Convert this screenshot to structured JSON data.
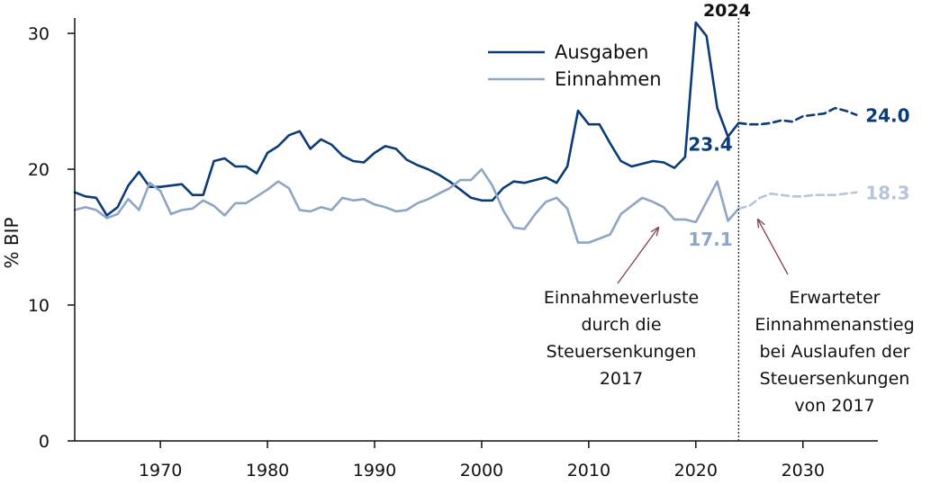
{
  "colors": {
    "ausgaben": "#0b3b78",
    "einnahmen": "#8fa5c4",
    "einnahmen_proj": "#b7c5db",
    "annotation_arrow": "#8a4a5a",
    "axis": "#111111"
  },
  "chart_data": {
    "type": "line",
    "ylabel": "% BIP",
    "xlim": [
      1962,
      2037
    ],
    "ylim": [
      0,
      31
    ],
    "xticks": [
      1970,
      1980,
      1990,
      2000,
      2010,
      2020,
      2030
    ],
    "yticks": [
      0,
      10,
      20,
      30
    ],
    "grid": false,
    "legend_position": "top-right",
    "vertical_marker": {
      "x": 2024,
      "label": "2024",
      "style": "dotted"
    },
    "series": [
      {
        "name": "Ausgaben",
        "style": "solid",
        "x": [
          1962,
          1963,
          1964,
          1965,
          1966,
          1967,
          1968,
          1969,
          1970,
          1971,
          1972,
          1973,
          1974,
          1975,
          1976,
          1977,
          1978,
          1979,
          1980,
          1981,
          1982,
          1983,
          1984,
          1985,
          1986,
          1987,
          1988,
          1989,
          1990,
          1991,
          1992,
          1993,
          1994,
          1995,
          1996,
          1997,
          1998,
          1999,
          2000,
          2001,
          2002,
          2003,
          2004,
          2005,
          2006,
          2007,
          2008,
          2009,
          2010,
          2011,
          2012,
          2013,
          2014,
          2015,
          2016,
          2017,
          2018,
          2019,
          2020,
          2021,
          2022,
          2023,
          2024
        ],
        "y": [
          18.3,
          18.0,
          17.9,
          16.6,
          17.2,
          18.8,
          19.8,
          18.7,
          18.7,
          18.8,
          18.9,
          18.1,
          18.1,
          20.6,
          20.8,
          20.2,
          20.2,
          19.7,
          21.2,
          21.7,
          22.5,
          22.8,
          21.5,
          22.2,
          21.8,
          21.0,
          20.6,
          20.5,
          21.2,
          21.7,
          21.5,
          20.7,
          20.3,
          20.0,
          19.6,
          19.1,
          18.5,
          17.9,
          17.7,
          17.7,
          18.6,
          19.1,
          19.0,
          19.2,
          19.4,
          19.0,
          20.2,
          24.3,
          23.3,
          23.3,
          21.9,
          20.6,
          20.2,
          20.4,
          20.6,
          20.5,
          20.1,
          20.9,
          30.8,
          29.8,
          24.5,
          22.4,
          23.4
        ]
      },
      {
        "name": "Einnahmen",
        "style": "solid",
        "x": [
          1962,
          1963,
          1964,
          1965,
          1966,
          1967,
          1968,
          1969,
          1970,
          1971,
          1972,
          1973,
          1974,
          1975,
          1976,
          1977,
          1978,
          1979,
          1980,
          1981,
          1982,
          1983,
          1984,
          1985,
          1986,
          1987,
          1988,
          1989,
          1990,
          1991,
          1992,
          1993,
          1994,
          1995,
          1996,
          1997,
          1998,
          1999,
          2000,
          2001,
          2002,
          2003,
          2004,
          2005,
          2006,
          2007,
          2008,
          2009,
          2010,
          2011,
          2012,
          2013,
          2014,
          2015,
          2016,
          2017,
          2018,
          2019,
          2020,
          2021,
          2022,
          2023,
          2024
        ],
        "y": [
          17.0,
          17.2,
          17.0,
          16.4,
          16.7,
          17.8,
          17.0,
          19.0,
          18.4,
          16.7,
          17.0,
          17.1,
          17.7,
          17.3,
          16.6,
          17.5,
          17.5,
          18.0,
          18.5,
          19.1,
          18.6,
          17.0,
          16.9,
          17.2,
          17.0,
          17.9,
          17.7,
          17.8,
          17.4,
          17.2,
          16.9,
          17.0,
          17.5,
          17.8,
          18.2,
          18.6,
          19.2,
          19.2,
          20.0,
          18.8,
          17.0,
          15.7,
          15.6,
          16.7,
          17.6,
          17.9,
          17.1,
          14.6,
          14.6,
          14.9,
          15.2,
          16.7,
          17.3,
          17.9,
          17.6,
          17.2,
          16.3,
          16.3,
          16.1,
          17.6,
          19.1,
          16.2,
          17.1
        ]
      },
      {
        "name": "Ausgaben",
        "style": "dashed",
        "x": [
          2024,
          2025,
          2026,
          2027,
          2028,
          2029,
          2030,
          2031,
          2032,
          2033,
          2034,
          2035
        ],
        "y": [
          23.4,
          23.3,
          23.3,
          23.4,
          23.6,
          23.5,
          23.9,
          24.0,
          24.1,
          24.5,
          24.3,
          24.0
        ]
      },
      {
        "name": "Einnahmen",
        "style": "dashed",
        "x": [
          2024,
          2025,
          2026,
          2027,
          2028,
          2029,
          2030,
          2031,
          2032,
          2033,
          2034,
          2035
        ],
        "y": [
          17.1,
          17.3,
          17.9,
          18.2,
          18.1,
          18.0,
          18.0,
          18.1,
          18.1,
          18.1,
          18.2,
          18.3
        ]
      }
    ],
    "data_labels": [
      {
        "series": "Ausgaben",
        "x": 2024,
        "y": 23.4,
        "text": "23.4"
      },
      {
        "series": "Einnahmen",
        "x": 2024,
        "y": 17.1,
        "text": "17.1"
      },
      {
        "series": "Ausgaben",
        "x": 2035,
        "y": 24.0,
        "text": "24.0"
      },
      {
        "series": "Einnahmen",
        "x": 2035,
        "y": 18.3,
        "text": "18.3"
      }
    ],
    "annotations": [
      {
        "lines": [
          "Einnahmeverluste",
          "durch die",
          "Steuersenkungen",
          "2017"
        ],
        "arrow_to": {
          "x": 2016.5,
          "y": 15.7
        }
      },
      {
        "lines": [
          "Erwarteter",
          "Einnahmenanstieg",
          "bei Auslaufen der",
          "Steuersenkungen",
          "von 2017"
        ],
        "arrow_to": {
          "x": 2025.8,
          "y": 16.3
        }
      }
    ]
  }
}
